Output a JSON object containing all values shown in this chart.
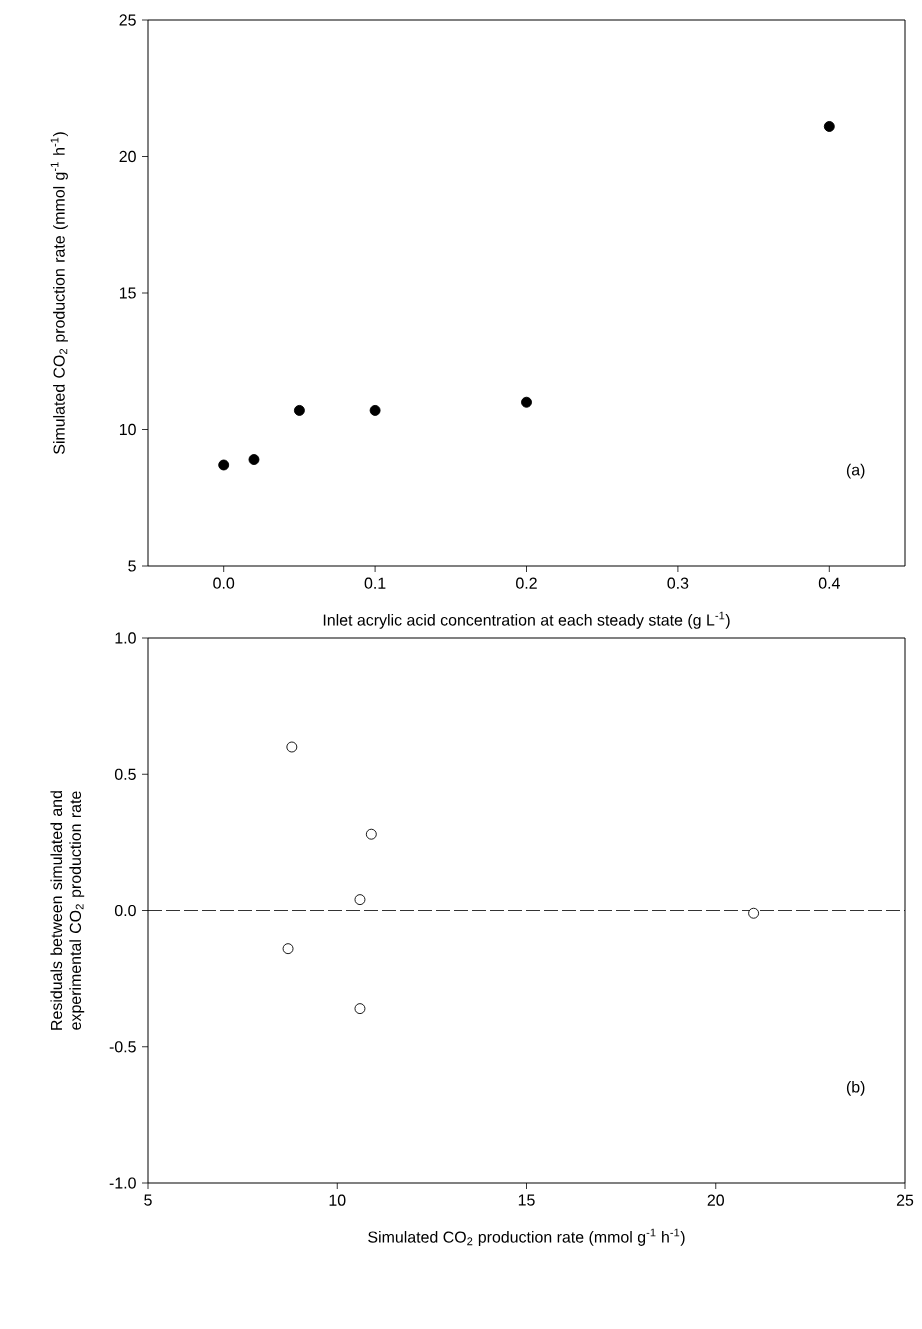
{
  "chart_data": [
    {
      "type": "scatter",
      "xlabel": "Inlet acrylic acid concentration at each steady state (g L$^{-1}$)",
      "ylabel": "Simulated CO$_{2}$ production rate (mmol g$^{-1}$ h$^{-1}$)",
      "annotations": [
        "(a)"
      ],
      "x": [
        0.0,
        0.02,
        0.05,
        0.1,
        0.2,
        0.4
      ],
      "series": [
        {
          "color": "#000000",
          "values": [
            8.7,
            8.9,
            10.7,
            10.7,
            11.0,
            21.1
          ]
        }
      ],
      "marker": "circle",
      "grid": false,
      "xlim": [
        -0.05,
        0.45
      ],
      "xticks": [
        {
          "value": 0.0,
          "label": "0.0"
        },
        0.1,
        0.2,
        0.3,
        0.4
      ],
      "ylim": [
        5,
        25
      ],
      "yticks": [
        5,
        10,
        15,
        20,
        25
      ]
    },
    {
      "type": "scatter",
      "xlabel": "Simulated CO$_{2}$ production rate (mmol g$^{-1}$ h$^{-1}$)",
      "ylabel": "Residuals between simulated and experimental CO$_{2}$ production rate",
      "annotations": [
        "(b)"
      ],
      "x": [
        8.8,
        10.9,
        10.6,
        8.7,
        10.6,
        21.0
      ],
      "series": [
        {
          "color": "#000000",
          "values": [
            0.6,
            0.28,
            0.04,
            -0.14,
            -0.36,
            -0.01
          ]
        }
      ],
      "marker": "circle",
      "grid": false,
      "ref_lines": [
        {
          "axis": "y",
          "value": 0,
          "line_style": "dashed",
          "color": "#000000"
        }
      ],
      "xlim": [
        5,
        25
      ],
      "xticks": [
        5,
        10,
        15,
        20,
        25
      ],
      "ylim": [
        -1.0,
        1.0
      ],
      "yticks": [
        {
          "value": -1.0,
          "label": "-1.0"
        },
        -0.5,
        {
          "value": 0.0,
          "label": "0.0"
        },
        0.5,
        {
          "value": 1.0,
          "label": "1.0"
        }
      ]
    }
  ]
}
